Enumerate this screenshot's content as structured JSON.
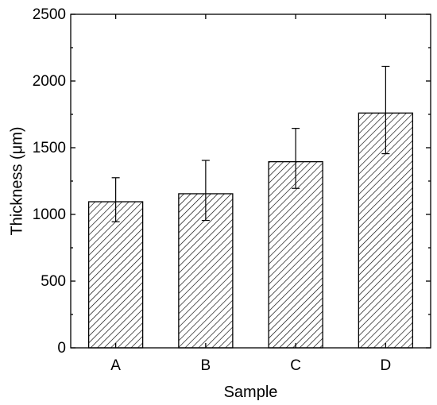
{
  "chart_data": {
    "type": "bar",
    "categories": [
      "A",
      "B",
      "C",
      "D"
    ],
    "values": [
      1095,
      1155,
      1395,
      1760
    ],
    "errors": [
      [
        945,
        1275
      ],
      [
        955,
        1405
      ],
      [
        1195,
        1645
      ],
      [
        1455,
        2110
      ]
    ],
    "ylim": [
      0,
      2500
    ],
    "yticks": [
      "0",
      "500",
      "1000",
      "1500",
      "2000",
      "2500"
    ],
    "xlabel": "Sample",
    "ylabel": "Thickness (μm)",
    "title": "",
    "grid": false,
    "bar_fill": "diagonal-hatch",
    "bar_color": "#000000",
    "background": "#ffffff"
  }
}
